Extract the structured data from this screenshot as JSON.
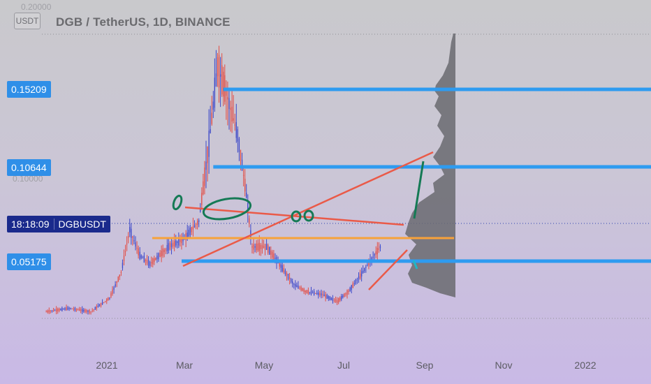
{
  "header": {
    "title": "DGB / TetherUS, 1D, BINANCE",
    "currency": "USDT",
    "ghost_ticks": [
      "0.20000",
      "0.10000"
    ]
  },
  "price_labels": {
    "top": "0.15209",
    "mid": "0.10644",
    "low": "0.05175"
  },
  "countdown": {
    "time": "18:18:09",
    "symbol": "DGBUSDT"
  },
  "colors": {
    "up": "#3d49c9",
    "down": "#e34d44",
    "support_line": "#2e9bf0",
    "orange_line": "#f7a23a",
    "trend_line": "#ea5a48",
    "green_annotation": "#157a55",
    "volume_profile": "#6a6a70"
  },
  "chart_data": {
    "type": "candlestick",
    "title": "DGB / TetherUS, 1D, BINANCE",
    "x_ticks": [
      "2021",
      "Mar",
      "May",
      "Jul",
      "Sep",
      "Nov",
      "2022"
    ],
    "x_range": [
      "2020-12-27",
      "2022-02-23"
    ],
    "y_range": [
      0.0,
      0.2
    ],
    "horizontal_levels": [
      0.15209,
      0.10644,
      0.05175
    ],
    "series": [
      {
        "values": [
          [
            "2020-12-30",
            0.022
          ],
          [
            "2021-01-15",
            0.024
          ],
          [
            "2021-01-30",
            0.022
          ],
          [
            "2021-02-12",
            0.03
          ],
          [
            "2021-02-20",
            0.045
          ],
          [
            "2021-02-26",
            0.07
          ],
          [
            "2021-03-05",
            0.055
          ],
          [
            "2021-03-12",
            0.05
          ],
          [
            "2021-03-25",
            0.06
          ],
          [
            "2021-04-05",
            0.065
          ],
          [
            "2021-04-15",
            0.075
          ],
          [
            "2021-04-22",
            0.12
          ],
          [
            "2021-04-28",
            0.165
          ],
          [
            "2021-05-04",
            0.15
          ],
          [
            "2021-05-12",
            0.125
          ],
          [
            "2021-05-18",
            0.09
          ],
          [
            "2021-05-22",
            0.06
          ],
          [
            "2021-06-01",
            0.06
          ],
          [
            "2021-06-10",
            0.05
          ],
          [
            "2021-06-20",
            0.038
          ],
          [
            "2021-06-28",
            0.034
          ],
          [
            "2021-07-10",
            0.032
          ],
          [
            "2021-07-20",
            0.028
          ],
          [
            "2021-07-28",
            0.034
          ],
          [
            "2021-08-05",
            0.043
          ],
          [
            "2021-08-12",
            0.052
          ],
          [
            "2021-08-20",
            0.061
          ]
        ]
      }
    ]
  }
}
